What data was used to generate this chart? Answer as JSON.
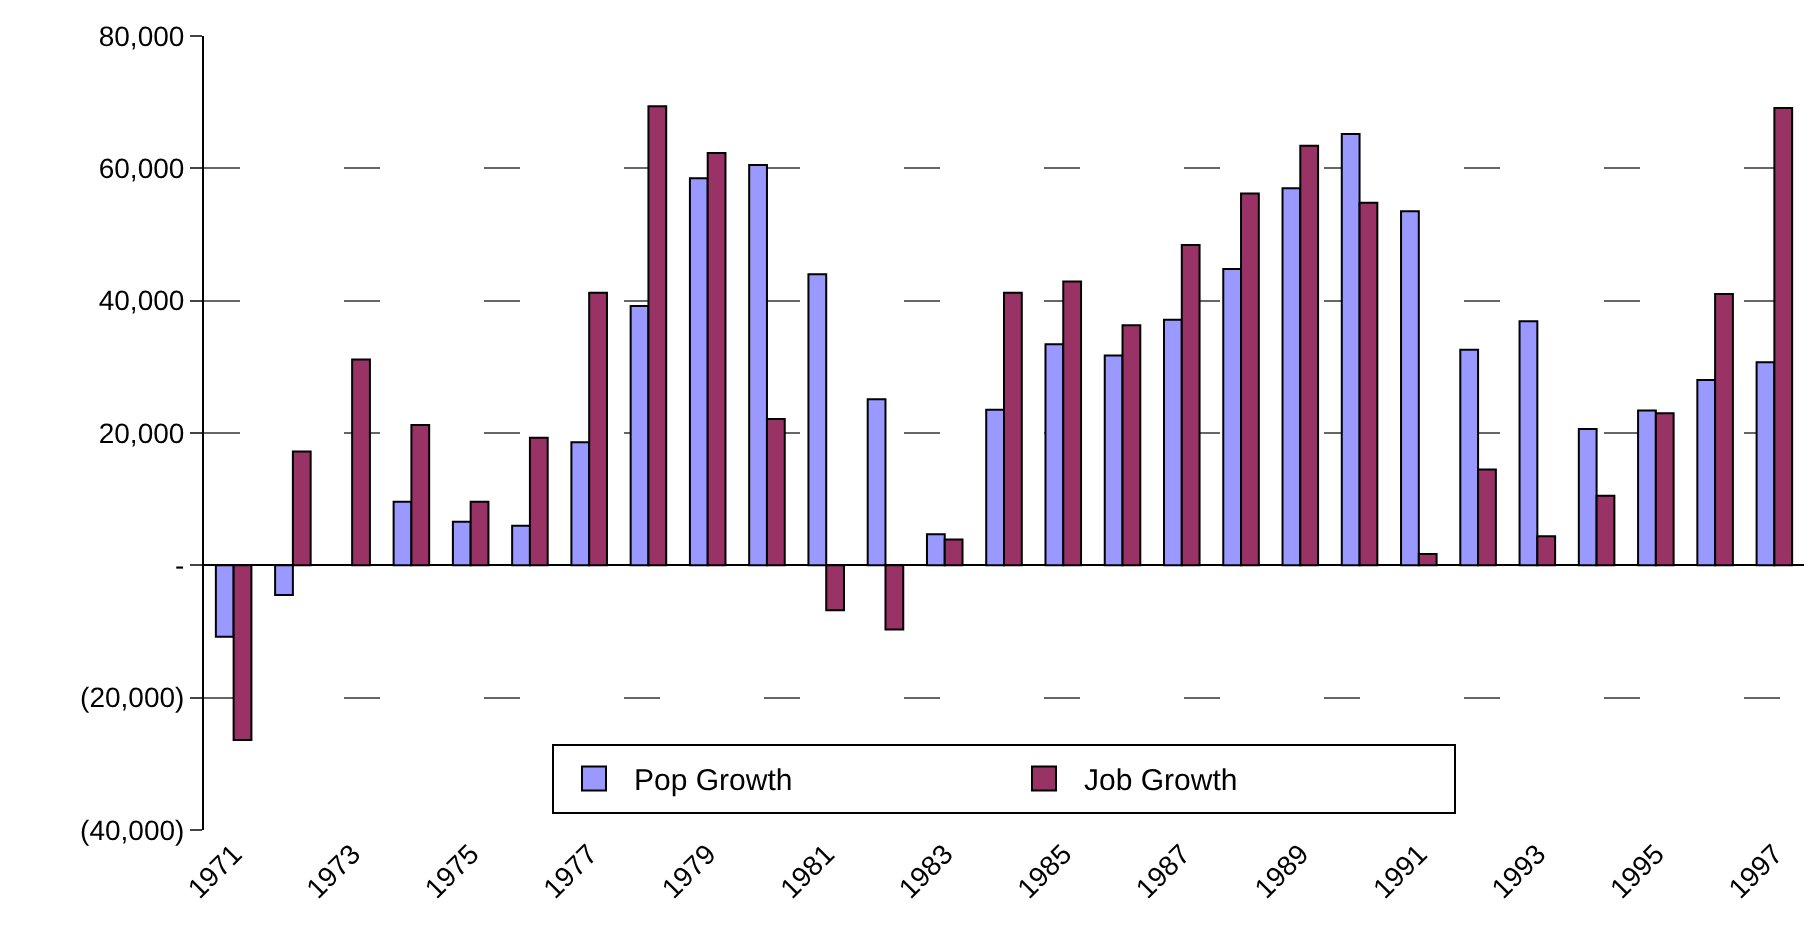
{
  "chart_data": {
    "type": "bar",
    "categories": [
      "1971",
      null,
      "1973",
      null,
      "1975",
      null,
      "1977",
      null,
      "1979",
      null,
      "1981",
      null,
      "1983",
      null,
      "1985",
      null,
      "1987",
      null,
      "1989",
      null,
      "1991",
      null,
      "1993",
      null,
      "1995",
      null,
      "1997"
    ],
    "series": [
      {
        "name": "Pop Growth",
        "color": "#9999ff",
        "values": [
          -10800,
          -4500,
          0,
          9600,
          6600,
          6000,
          18600,
          39200,
          58500,
          60500,
          44000,
          25100,
          4700,
          23500,
          33400,
          31700,
          37100,
          44800,
          57000,
          65200,
          53500,
          32600,
          36900,
          20600,
          23400,
          28000,
          30700
        ]
      },
      {
        "name": "Job Growth",
        "color": "#993366",
        "values": [
          -26400,
          17200,
          31100,
          21200,
          9600,
          19300,
          41200,
          69400,
          62300,
          22100,
          -6800,
          -9700,
          3900,
          41200,
          42900,
          36300,
          48400,
          56200,
          63400,
          54800,
          1700,
          14500,
          4400,
          10500,
          23000,
          41000,
          69100
        ]
      }
    ],
    "ylim": [
      -40000,
      80000
    ],
    "yticks": [
      {
        "value": -40000,
        "label": "(40,000)"
      },
      {
        "value": -20000,
        "label": "(20,000)"
      },
      {
        "value": 0,
        "label": "-"
      },
      {
        "value": 20000,
        "label": "20,000"
      },
      {
        "value": 40000,
        "label": "40,000"
      },
      {
        "value": 60000,
        "label": "60,000"
      },
      {
        "value": 80000,
        "label": "80,000"
      }
    ],
    "grid": "y",
    "legend": "bottom"
  }
}
